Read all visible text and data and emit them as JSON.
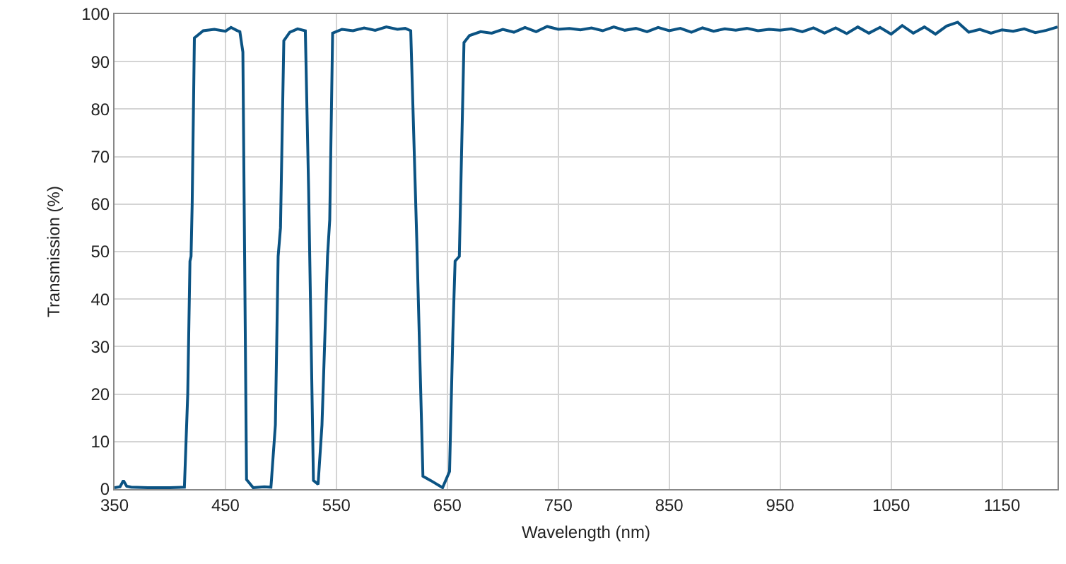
{
  "chart_data": {
    "type": "line",
    "xlabel": "Wavelength (nm)",
    "ylabel": "Transmission (%)",
    "x": [
      350,
      355,
      358,
      361,
      365,
      380,
      400,
      413,
      416,
      418,
      419,
      420,
      422,
      430,
      440,
      450,
      455,
      460,
      463,
      465.7,
      469,
      475,
      485,
      491,
      495,
      497.5,
      499.6,
      502.6,
      508,
      515,
      522,
      525,
      529.3,
      533.5,
      537,
      542,
      544,
      546.6,
      555,
      565,
      575,
      585,
      595,
      605,
      612,
      617,
      622.4,
      628,
      635,
      645.7,
      652,
      655,
      657,
      660.8,
      665,
      670,
      680,
      690,
      700,
      710,
      720,
      730,
      740,
      750,
      760,
      770,
      780,
      790,
      800,
      810,
      820,
      830,
      840,
      850,
      860,
      870,
      880,
      890,
      900,
      910,
      920,
      930,
      940,
      950,
      960,
      970,
      980,
      990,
      1000,
      1010,
      1020,
      1030,
      1040,
      1050,
      1060,
      1070,
      1080,
      1090,
      1100,
      1110,
      1120,
      1130,
      1140,
      1150,
      1160,
      1170,
      1180,
      1190,
      1200
    ],
    "series": [
      {
        "color": "#0b5383",
        "values": [
          0.3,
          0.5,
          1.8,
          0.6,
          0.4,
          0.3,
          0.3,
          0.4,
          20,
          48,
          49,
          60,
          95,
          96.5,
          96.8,
          96.4,
          97.2,
          96.6,
          96.3,
          92,
          2,
          0.3,
          0.5,
          0.4,
          13.5,
          49,
          55,
          94.4,
          96.2,
          96.9,
          96.5,
          62.7,
          1.8,
          1,
          13.5,
          49,
          56.7,
          96,
          96.8,
          96.5,
          97.1,
          96.6,
          97.3,
          96.8,
          97.0,
          96.5,
          52.9,
          2.7,
          1.8,
          0.3,
          3.7,
          33,
          48,
          49,
          94,
          95.5,
          96.3,
          96.0,
          96.8,
          96.2,
          97.2,
          96.3,
          97.4,
          96.8,
          97.0,
          96.7,
          97.1,
          96.5,
          97.3,
          96.6,
          97.0,
          96.3,
          97.2,
          96.5,
          97.0,
          96.2,
          97.1,
          96.4,
          96.9,
          96.6,
          97.0,
          96.5,
          96.8,
          96.6,
          96.9,
          96.3,
          97.1,
          96.0,
          97.1,
          95.9,
          97.3,
          96.0,
          97.2,
          95.8,
          97.6,
          96.0,
          97.3,
          95.8,
          97.5,
          98.3,
          96.2,
          96.8,
          96.0,
          96.7,
          96.4,
          96.9,
          96.1,
          96.6,
          97.3
        ]
      }
    ],
    "xlim": [
      350,
      1200
    ],
    "xticks": [
      350,
      450,
      550,
      650,
      750,
      850,
      950,
      1050,
      1150
    ],
    "ylim": [
      0,
      100
    ],
    "yticks": [
      0,
      10,
      20,
      30,
      40,
      50,
      60,
      70,
      80,
      90,
      100
    ],
    "grid": true,
    "marker": "none",
    "line_style": "solid"
  }
}
